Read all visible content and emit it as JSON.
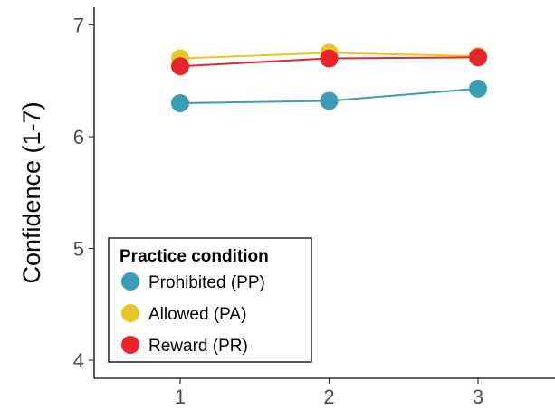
{
  "chart_data": {
    "type": "line",
    "title": "",
    "xlabel": "",
    "ylabel": "Confidence (1-7)",
    "x": [
      1,
      2,
      3
    ],
    "xticks": [
      "1",
      "2",
      "3"
    ],
    "yticks": [
      "4",
      "5",
      "6",
      "7"
    ],
    "xlim": [
      0.6,
      3.5
    ],
    "ylim": [
      3.85,
      7.12
    ],
    "grid": false,
    "legend": {
      "title": "Practice condition",
      "placement": "bottom-left"
    },
    "series": [
      {
        "name": "Prohibited (PP)",
        "color": "#3b9db3",
        "values": [
          6.3,
          6.32,
          6.43
        ],
        "errors": [
          0.05,
          0.05,
          0.05
        ]
      },
      {
        "name": "Allowed (PA)",
        "color": "#e8c62a",
        "values": [
          6.7,
          6.75,
          6.72
        ],
        "errors": [
          0.05,
          0.04,
          0.04
        ]
      },
      {
        "name": "Reward (PR)",
        "color": "#e8252a",
        "values": [
          6.63,
          6.7,
          6.71
        ],
        "errors": [
          0.05,
          0.04,
          0.03
        ]
      }
    ]
  }
}
